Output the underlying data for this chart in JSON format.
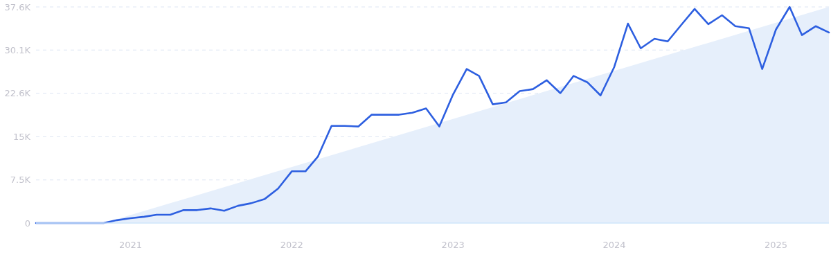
{
  "chart_data": {
    "type": "line",
    "x": [
      "2020-06",
      "2020-07",
      "2020-08",
      "2020-09",
      "2020-10",
      "2020-11",
      "2020-12",
      "2021-01",
      "2021-02",
      "2021-03",
      "2021-04",
      "2021-05",
      "2021-06",
      "2021-07",
      "2021-08",
      "2021-09",
      "2021-10",
      "2021-11",
      "2021-12",
      "2022-01",
      "2022-02",
      "2022-03",
      "2022-04",
      "2022-05",
      "2022-06",
      "2022-07",
      "2022-08",
      "2022-09",
      "2022-10",
      "2022-11",
      "2022-12",
      "2023-01",
      "2023-02",
      "2023-03",
      "2023-04",
      "2023-05",
      "2023-06",
      "2023-07",
      "2023-08",
      "2023-09",
      "2023-10",
      "2023-11",
      "2023-12",
      "2024-01",
      "2024-02",
      "2024-03",
      "2024-04",
      "2024-05",
      "2024-06",
      "2024-07",
      "2024-08",
      "2024-09",
      "2024-10",
      "2024-11",
      "2024-12",
      "2025-01",
      "2025-02",
      "2025-03",
      "2025-04",
      "2025-05"
    ],
    "series": [
      {
        "type": "area",
        "color": "#e6effb",
        "x": [
          "2020-11",
          "2025-05"
        ],
        "values": [
          0,
          37600
        ]
      },
      {
        "color": "#2d5fe0",
        "values": [
          0,
          0,
          0,
          0,
          0,
          0,
          500,
          850,
          1100,
          1450,
          1450,
          2250,
          2250,
          2550,
          2150,
          3000,
          3450,
          4200,
          6000,
          9000,
          9000,
          11550,
          16900,
          16900,
          16800,
          18850,
          18850,
          18850,
          19200,
          19950,
          16800,
          22350,
          26800,
          25600,
          20650,
          21000,
          22950,
          23300,
          24850,
          22600,
          25600,
          24500,
          22200,
          27150,
          34700,
          30400,
          32050,
          31600,
          34500,
          37250,
          34600,
          36150,
          34250,
          33900,
          26800,
          33650,
          37600,
          32700,
          34250,
          33150
        ]
      }
    ],
    "xlim": [
      "2020-06",
      "2025-05"
    ],
    "xticks": [
      {
        "value": "2021-01",
        "label": "2021"
      },
      {
        "value": "2022-01",
        "label": "2022"
      },
      {
        "value": "2023-01",
        "label": "2023"
      },
      {
        "value": "2024-01",
        "label": "2024"
      },
      {
        "value": "2025-01",
        "label": "2025"
      }
    ],
    "ylim": [
      0,
      37600
    ],
    "yticks": [
      0,
      {
        "value": 7500,
        "label": "7.5K"
      },
      {
        "value": 15000,
        "label": "15K"
      },
      {
        "value": 22600,
        "label": "22.6K"
      },
      {
        "value": 30100,
        "label": "30.1K"
      },
      {
        "value": 37600,
        "label": "37.6K"
      }
    ],
    "grid": "y",
    "marker": "none",
    "line_style": "solid"
  }
}
